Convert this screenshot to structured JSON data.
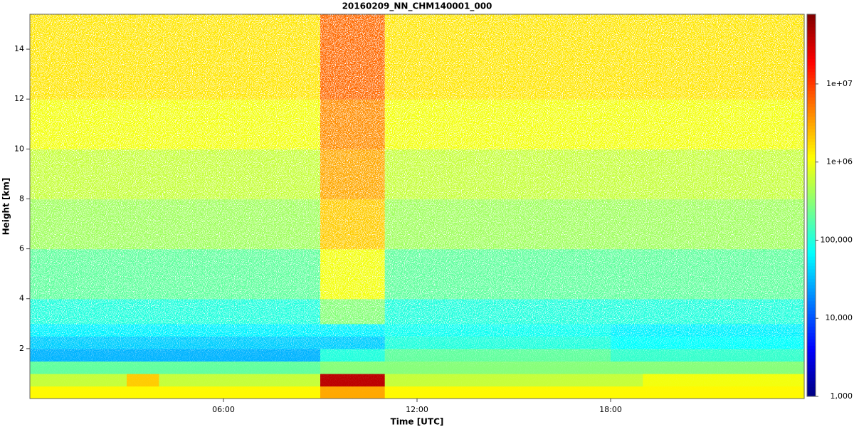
{
  "chart_data": {
    "type": "heatmap",
    "title": "20160209_NN_CHM140001_000",
    "x_label": "Time [UTC]",
    "y_label": "Height [km]",
    "xbins": [
      0,
      1,
      2,
      3,
      4,
      5,
      6,
      7,
      8,
      9,
      10,
      11,
      12,
      13,
      14,
      15,
      16,
      17,
      18,
      19,
      20,
      21,
      22,
      23,
      24
    ],
    "ybins": [
      0,
      0.5,
      1,
      1.5,
      2,
      2.5,
      3,
      4,
      6,
      8,
      10,
      12,
      15.4
    ],
    "xlim": [
      0,
      24
    ],
    "ylim": [
      0,
      15.4
    ],
    "xticks": [
      {
        "value": 6,
        "label": "06:00"
      },
      {
        "value": 12,
        "label": "12:00"
      },
      {
        "value": 18,
        "label": "18:00"
      }
    ],
    "yticks": [
      2,
      4,
      6,
      8,
      10,
      12,
      14
    ],
    "clim": [
      1000,
      78000000
    ],
    "cscale": "log",
    "cticks": [
      {
        "value": 1000,
        "label": "1,000"
      },
      {
        "value": 10000,
        "label": "10,000"
      },
      {
        "value": 100000,
        "label": "100,000"
      },
      {
        "value": 1000000,
        "label": "1e+06"
      },
      {
        "value": 10000000,
        "label": "1e+07"
      }
    ],
    "z": [
      [
        1200000,
        1200000,
        1200000,
        1200000,
        1200000,
        1200000,
        1200000,
        1200000,
        1200000,
        3000000,
        3000000,
        1200000,
        1200000,
        1200000,
        1200000,
        1200000,
        1200000,
        1200000,
        1200000,
        1200000,
        1200000,
        1200000,
        1200000,
        1200000
      ],
      [
        600000,
        600000,
        600000,
        2000000,
        600000,
        600000,
        600000,
        600000,
        600000,
        40000000,
        40000000,
        600000,
        600000,
        600000,
        600000,
        600000,
        600000,
        600000,
        600000,
        1000000,
        1000000,
        1000000,
        1000000,
        1000000
      ],
      [
        200000,
        200000,
        200000,
        200000,
        200000,
        200000,
        200000,
        200000,
        200000,
        300000,
        300000,
        300000,
        300000,
        300000,
        300000,
        300000,
        300000,
        300000,
        300000,
        300000,
        300000,
        300000,
        300000,
        300000
      ],
      [
        30000,
        30000,
        30000,
        30000,
        30000,
        30000,
        30000,
        30000,
        30000,
        100000,
        100000,
        200000,
        200000,
        200000,
        200000,
        200000,
        200000,
        200000,
        120000,
        120000,
        120000,
        120000,
        120000,
        120000
      ],
      [
        40000,
        40000,
        40000,
        40000,
        40000,
        40000,
        40000,
        40000,
        40000,
        40000,
        40000,
        100000,
        100000,
        100000,
        100000,
        100000,
        100000,
        100000,
        70000,
        70000,
        70000,
        70000,
        70000,
        70000
      ],
      [
        60000,
        60000,
        60000,
        60000,
        60000,
        60000,
        60000,
        60000,
        60000,
        60000,
        60000,
        80000,
        80000,
        80000,
        80000,
        80000,
        80000,
        80000,
        60000,
        60000,
        60000,
        60000,
        60000,
        60000
      ],
      [
        100000,
        100000,
        100000,
        100000,
        100000,
        100000,
        100000,
        100000,
        100000,
        300000,
        300000,
        100000,
        100000,
        100000,
        100000,
        100000,
        100000,
        100000,
        100000,
        100000,
        100000,
        100000,
        100000,
        100000
      ],
      [
        200000,
        200000,
        200000,
        200000,
        200000,
        200000,
        200000,
        200000,
        200000,
        1000000,
        1000000,
        200000,
        200000,
        200000,
        200000,
        200000,
        200000,
        200000,
        200000,
        200000,
        200000,
        200000,
        200000,
        200000
      ],
      [
        400000,
        400000,
        400000,
        400000,
        400000,
        400000,
        400000,
        400000,
        400000,
        2000000,
        2000000,
        400000,
        400000,
        400000,
        400000,
        400000,
        400000,
        400000,
        400000,
        400000,
        400000,
        400000,
        400000,
        400000
      ],
      [
        600000,
        600000,
        600000,
        600000,
        600000,
        600000,
        600000,
        600000,
        600000,
        3000000,
        3000000,
        600000,
        600000,
        600000,
        600000,
        600000,
        600000,
        600000,
        600000,
        600000,
        600000,
        600000,
        600000,
        600000
      ],
      [
        1000000,
        1000000,
        1000000,
        1000000,
        1000000,
        1000000,
        1000000,
        1000000,
        1000000,
        4000000,
        4000000,
        1000000,
        1000000,
        1000000,
        1000000,
        1000000,
        1000000,
        1000000,
        1000000,
        1000000,
        1000000,
        1000000,
        1000000,
        1000000
      ],
      [
        1500000,
        1500000,
        1500000,
        1500000,
        1500000,
        1500000,
        1500000,
        1500000,
        1500000,
        6000000,
        6000000,
        1500000,
        1500000,
        1500000,
        1500000,
        1500000,
        1500000,
        1500000,
        1500000,
        1500000,
        1500000,
        1500000,
        1500000,
        1500000
      ]
    ]
  }
}
